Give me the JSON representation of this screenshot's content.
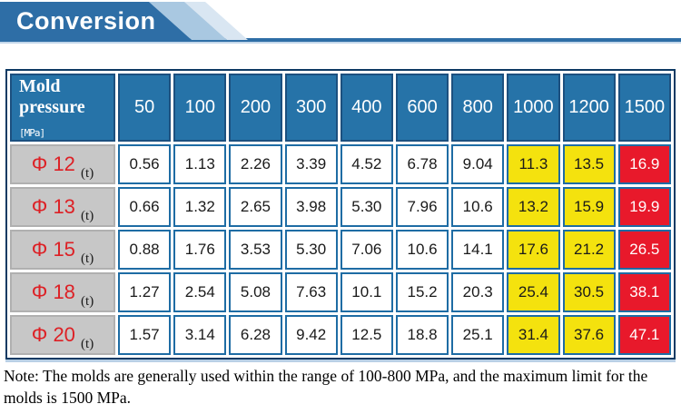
{
  "banner": {
    "title": "Conversion"
  },
  "table": {
    "corner": {
      "title": "Mold pressure",
      "unit": "[MPa]"
    },
    "columns": [
      "50",
      "100",
      "200",
      "300",
      "400",
      "600",
      "800",
      "1000",
      "1200",
      "1500"
    ],
    "rows": [
      {
        "label": "Φ 12",
        "unit": "(t)",
        "values": [
          "0.56",
          "1.13",
          "2.26",
          "3.39",
          "4.52",
          "6.78",
          "9.04",
          "11.3",
          "13.5",
          "16.9"
        ]
      },
      {
        "label": "Φ 13",
        "unit": "(t)",
        "values": [
          "0.66",
          "1.32",
          "2.65",
          "3.98",
          "5.30",
          "7.96",
          "10.6",
          "13.2",
          "15.9",
          "19.9"
        ]
      },
      {
        "label": "Φ 15",
        "unit": "(t)",
        "values": [
          "0.88",
          "1.76",
          "3.53",
          "5.30",
          "7.06",
          "10.6",
          "14.1",
          "17.6",
          "21.2",
          "26.5"
        ]
      },
      {
        "label": "Φ 18",
        "unit": "(t)",
        "values": [
          "1.27",
          "2.54",
          "5.08",
          "7.63",
          "10.1",
          "15.2",
          "20.3",
          "25.4",
          "30.5",
          "38.1"
        ]
      },
      {
        "label": "Φ 20",
        "unit": "(t)",
        "values": [
          "1.57",
          "3.14",
          "6.28",
          "9.42",
          "12.5",
          "18.8",
          "25.1",
          "31.4",
          "37.6",
          "47.1"
        ]
      }
    ],
    "highlight": {
      "yellow_columns": [
        "1000",
        "1200"
      ],
      "red_columns": [
        "1500"
      ]
    }
  },
  "note": {
    "text": "Note: The molds are generally used within the range of 100-800 MPa, and the maximum limit for the molds is 1500 MPa."
  },
  "colors": {
    "banner_blue": "#2e6ea6",
    "banner_band_light": "#a9c8e1",
    "banner_band_lighter": "#d9e6f2",
    "header_fill": "#2673a8",
    "header_border": "#1c507f",
    "grid_border": "#1e6ca4",
    "outer_border": "#0e3a63",
    "row_header_gray": "#c7c7c7",
    "highlight_yellow": "#f4e20e",
    "highlight_red": "#e8192b",
    "label_red": "#dd2025"
  }
}
